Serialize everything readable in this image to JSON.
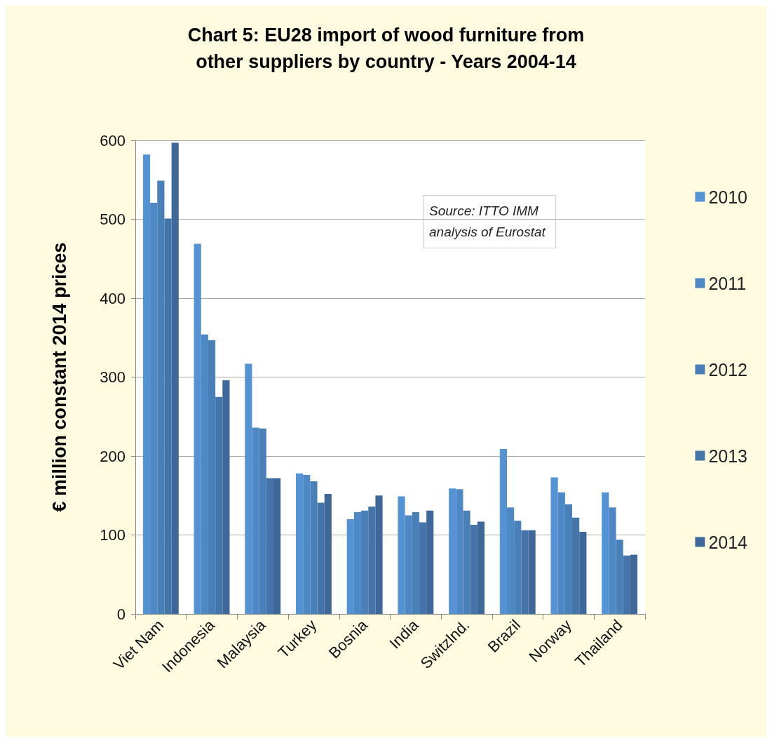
{
  "chart_data": {
    "type": "bar",
    "title": "Chart 5: EU28 import of wood furniture from\nother suppliers by country - Years 2004-14",
    "ylabel": "€ million constant 2014 prices",
    "categories": [
      "Viet Nam",
      "Indonesia",
      "Malaysia",
      "Turkey",
      "Bosnia",
      "India",
      "Switzlnd.",
      "Brazil",
      "Norway",
      "Thailand"
    ],
    "series": [
      {
        "name": "2010",
        "color": "#5393d3",
        "values": [
          582,
          469,
          317,
          178,
          120,
          149,
          159,
          209,
          173,
          154
        ]
      },
      {
        "name": "2011",
        "color": "#4f89c5",
        "values": [
          521,
          354,
          236,
          176,
          129,
          125,
          158,
          135,
          154,
          135
        ]
      },
      {
        "name": "2012",
        "color": "#4a80b8",
        "values": [
          549,
          347,
          235,
          168,
          131,
          129,
          131,
          118,
          139,
          94
        ]
      },
      {
        "name": "2013",
        "color": "#4575a8",
        "values": [
          501,
          275,
          172,
          141,
          136,
          116,
          113,
          106,
          122,
          74
        ]
      },
      {
        "name": "2014",
        "color": "#3d6899",
        "values": [
          597,
          296,
          172,
          152,
          150,
          131,
          117,
          106,
          104,
          75
        ]
      }
    ],
    "ylim": [
      0,
      600
    ],
    "yticks": [
      0,
      100,
      200,
      300,
      400,
      500,
      600
    ],
    "grid": "y",
    "legend": "right",
    "annotations": [
      "Source: ITTO IMM\nanalysis of Eurostat"
    ]
  }
}
